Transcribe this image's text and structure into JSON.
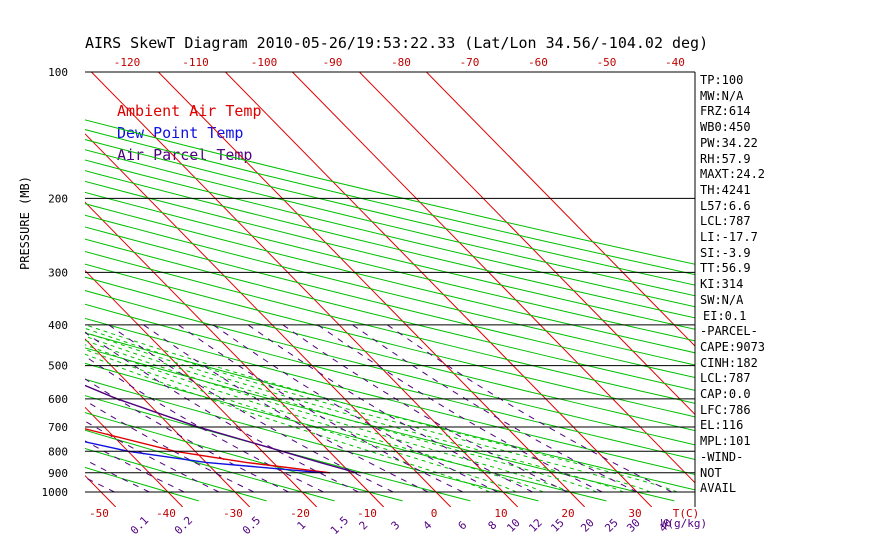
{
  "title": "AIRS SkewT Diagram 2010-05-26/19:53:22.33 (Lat/Lon 34.56/-104.02 deg)",
  "chart_data": {
    "type": "line",
    "ylabel": "PRESSURE (MB)",
    "xlabel": "T(C)",
    "mixing_ratio_label": "W(g/kg)",
    "pressure_ticks": [
      "100",
      "200",
      "300",
      "400",
      "500",
      "600",
      "700",
      "800",
      "900",
      "1000"
    ],
    "pressure_values": [
      100,
      200,
      300,
      400,
      500,
      600,
      700,
      800,
      900,
      1000
    ],
    "bottom_temp_ticks": [
      "-50",
      "-40",
      "-30",
      "-20",
      "-10",
      "0",
      "10",
      "20",
      "30"
    ],
    "bottom_temp_values": [
      -50,
      -40,
      -30,
      -20,
      -10,
      0,
      10,
      20,
      30
    ],
    "top_temp_ticks": [
      "-120",
      "-110",
      "-100",
      "-90",
      "-80",
      "-70",
      "-60",
      "-50",
      "-40"
    ],
    "mixing_ratio_ticks": [
      "0.1",
      "0.2",
      "0.5",
      "1",
      "1.5",
      "2",
      "3",
      "4",
      "6",
      "8",
      "10",
      "12",
      "15",
      "20",
      "25",
      "30",
      "40"
    ],
    "series": [
      {
        "name": "Ambient Air Temp",
        "color": "#e00000",
        "points": [
          [
            100,
            -61
          ],
          [
            150,
            -72
          ],
          [
            200,
            -76
          ],
          [
            250,
            -79
          ],
          [
            300,
            -76
          ],
          [
            400,
            -67
          ],
          [
            500,
            -56
          ],
          [
            600,
            -50
          ],
          [
            700,
            -44
          ],
          [
            800,
            -33
          ],
          [
            850,
            -24
          ],
          [
            900,
            -13
          ]
        ]
      },
      {
        "name": "Dew Point Temp",
        "color": "#1010e0",
        "points": [
          [
            100,
            -88
          ],
          [
            150,
            -92
          ],
          [
            200,
            -96
          ],
          [
            250,
            -98
          ],
          [
            300,
            -100
          ],
          [
            400,
            -93
          ],
          [
            500,
            -79
          ],
          [
            600,
            -66
          ],
          [
            700,
            -53
          ],
          [
            800,
            -40
          ],
          [
            850,
            -30
          ],
          [
            900,
            -14
          ]
        ]
      },
      {
        "name": "Air Parcel Temp",
        "color": "#500080",
        "points": [
          [
            100,
            -67
          ],
          [
            150,
            -61
          ],
          [
            200,
            -56
          ],
          [
            250,
            -52
          ],
          [
            300,
            -50
          ],
          [
            400,
            -47
          ],
          [
            500,
            -41
          ],
          [
            600,
            -34
          ],
          [
            700,
            -26
          ],
          [
            800,
            -17
          ],
          [
            850,
            -13
          ],
          [
            900,
            -9
          ]
        ]
      }
    ],
    "hatch_range": [
      120,
      860
    ]
  },
  "stats": [
    "TP:100",
    "MW:N/A",
    "FRZ:614",
    "WB0:450",
    "PW:34.22",
    "RH:57.9",
    "MAXT:24.2",
    "TH:4241",
    "L57:6.6",
    "LCL:787",
    "LI:-17.7",
    "SI:-3.9",
    "TT:56.9",
    "KI:314",
    "SW:N/A",
    "EI:0.1",
    "-PARCEL-",
    "CAPE:9073",
    "CINH:182",
    "LCL:787",
    "CAP:0.0",
    "LFC:786",
    "EL:116",
    "MPL:101",
    "-WIND-",
    "NOT",
    "AVAIL"
  ],
  "colors": {
    "isotherm": "#e00000",
    "dry_adiabat": "#00c000",
    "moist_adiabat": "#00c000",
    "mixing_ratio": "#500080",
    "grid": "#000000",
    "axis_label": "#c00000",
    "mix_label": "#500080"
  }
}
